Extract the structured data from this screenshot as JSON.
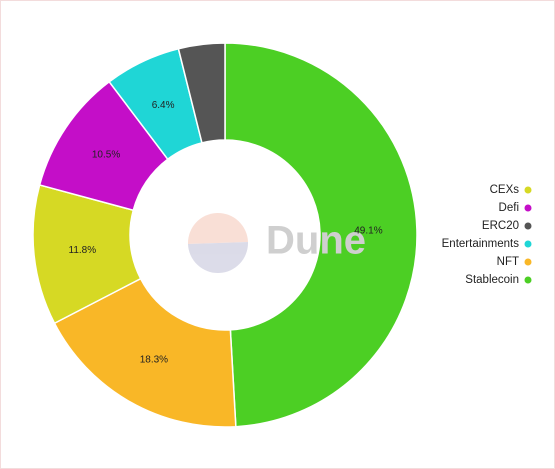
{
  "chart_data": {
    "type": "donut",
    "watermark": "Dune",
    "categories": [
      "Stablecoin",
      "NFT",
      "CEXs",
      "Defi",
      "Entertainments",
      "ERC20"
    ],
    "values": [
      49.1,
      18.3,
      11.8,
      10.5,
      6.4,
      3.9
    ],
    "value_labels": [
      "49.1%",
      "18.3%",
      "11.8%",
      "10.5%",
      "6.4%",
      null
    ],
    "colors": [
      "#4ccf24",
      "#f9b727",
      "#d6d924",
      "#c40ec8",
      "#1fd6d6",
      "#555555"
    ],
    "legend": "right"
  }
}
